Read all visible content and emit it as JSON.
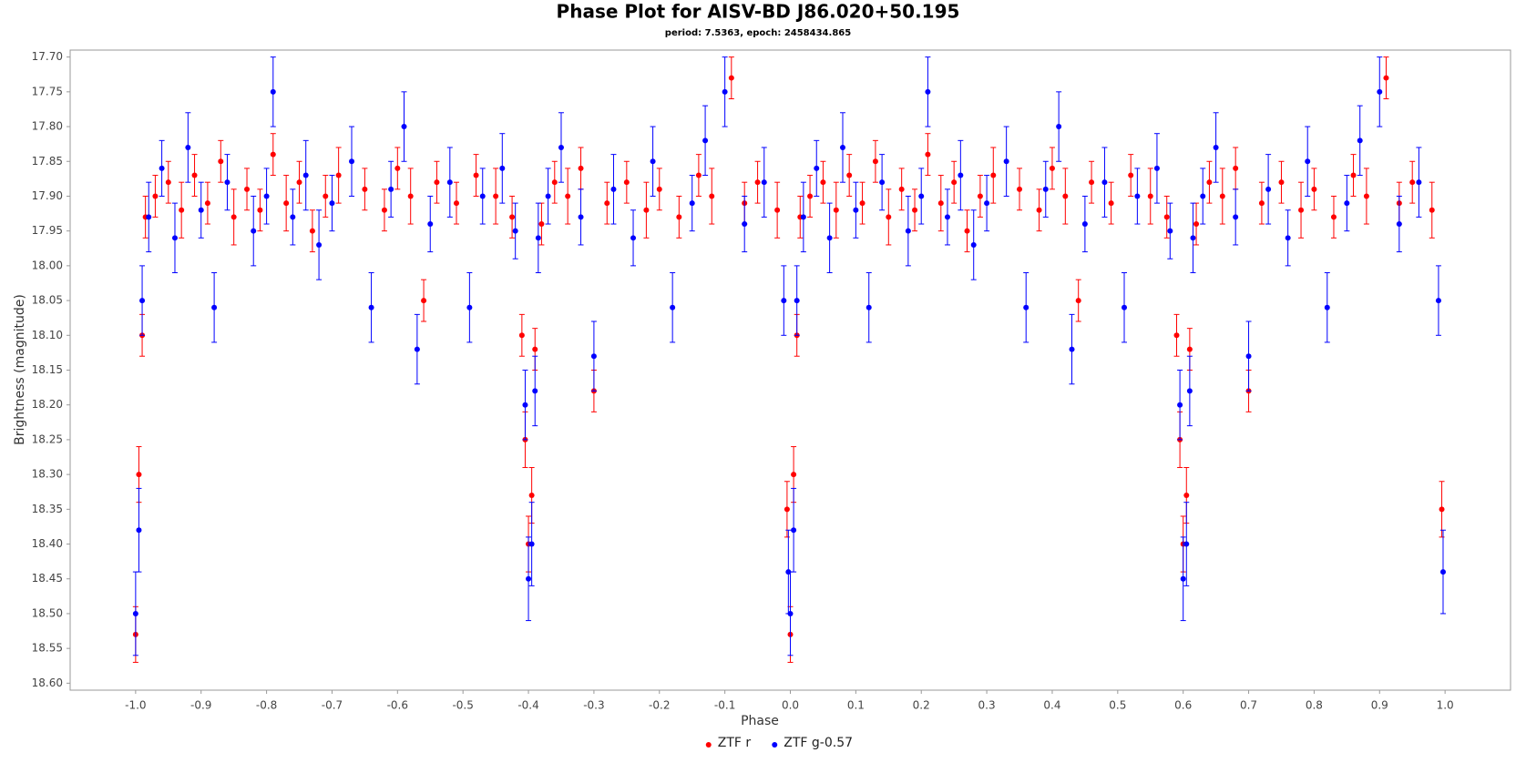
{
  "chart_data": {
    "type": "scatter",
    "title": "Phase Plot for AISV-BD J86.020+50.195",
    "subtitle": "period: 7.5363, epoch: 2458434.865",
    "x_label": "Phase",
    "y_label": "Brightness (magnitude)",
    "xlim": [
      -1.1,
      1.1
    ],
    "ylim": [
      18.61,
      17.69
    ],
    "xticks": [
      {
        "value": -1.0,
        "label": "-1.0"
      },
      -0.9,
      -0.8,
      -0.7,
      -0.6,
      -0.5,
      -0.4,
      -0.3,
      -0.2,
      -0.1,
      {
        "value": 0.0,
        "label": "0.0"
      },
      0.1,
      0.2,
      0.3,
      0.4,
      0.5,
      0.6,
      0.7,
      0.8,
      0.9,
      {
        "value": 1.0,
        "label": "1.0"
      }
    ],
    "yticks": [
      {
        "value": 17.7,
        "label": "17.70"
      },
      17.75,
      {
        "value": 17.8,
        "label": "17.80"
      },
      17.85,
      {
        "value": 17.9,
        "label": "17.90"
      },
      17.95,
      {
        "value": 18.0,
        "label": "18.00"
      },
      18.05,
      {
        "value": 18.1,
        "label": "18.10"
      },
      18.15,
      {
        "value": 18.2,
        "label": "18.20"
      },
      18.25,
      {
        "value": 18.3,
        "label": "18.30"
      },
      18.35,
      {
        "value": 18.4,
        "label": "18.40"
      },
      18.45,
      {
        "value": 18.5,
        "label": "18.50"
      },
      18.55,
      {
        "value": 18.6,
        "label": "18.60"
      }
    ],
    "grid": false,
    "legend": "bottom",
    "series": [
      {
        "name": "ZTF r",
        "color": "#ff0000",
        "x": [
          0.0,
          0.005,
          0.01,
          0.015,
          0.03,
          0.05,
          0.07,
          0.09,
          0.11,
          0.13,
          0.15,
          0.17,
          0.19,
          0.21,
          0.23,
          0.25,
          0.27,
          0.29,
          0.31,
          0.35,
          0.38,
          0.4,
          0.42,
          0.44,
          0.46,
          0.49,
          0.52,
          0.55,
          0.575,
          0.59,
          0.595,
          0.6,
          0.605,
          0.61,
          0.62,
          0.64,
          0.66,
          0.68,
          0.7,
          0.72,
          0.75,
          0.78,
          0.8,
          0.83,
          0.86,
          0.88,
          0.91,
          0.93,
          0.95,
          0.98,
          0.995,
          -1.0,
          -0.995,
          -0.99,
          -0.985,
          -0.97,
          -0.95,
          -0.93,
          -0.91,
          -0.89,
          -0.87,
          -0.85,
          -0.83,
          -0.81,
          -0.79,
          -0.77,
          -0.75,
          -0.73,
          -0.71,
          -0.69,
          -0.65,
          -0.62,
          -0.6,
          -0.58,
          -0.56,
          -0.54,
          -0.51,
          -0.48,
          -0.45,
          -0.425,
          -0.41,
          -0.405,
          -0.4,
          -0.395,
          -0.39,
          -0.38,
          -0.36,
          -0.34,
          -0.32,
          -0.3,
          -0.28,
          -0.25,
          -0.22,
          -0.2,
          -0.17,
          -0.14,
          -0.12,
          -0.09,
          -0.07,
          -0.05,
          -0.02,
          -0.005
        ],
        "values": [
          18.53,
          18.3,
          18.1,
          17.93,
          17.9,
          17.88,
          17.92,
          17.87,
          17.91,
          17.85,
          17.93,
          17.89,
          17.92,
          17.84,
          17.91,
          17.88,
          17.95,
          17.9,
          17.87,
          17.89,
          17.92,
          17.86,
          17.9,
          18.05,
          17.88,
          17.91,
          17.87,
          17.9,
          17.93,
          18.1,
          18.25,
          18.4,
          18.33,
          18.12,
          17.94,
          17.88,
          17.9,
          17.86,
          18.18,
          17.91,
          17.88,
          17.92,
          17.89,
          17.93,
          17.87,
          17.9,
          17.73,
          17.91,
          17.88,
          17.92,
          18.35,
          18.53,
          18.3,
          18.1,
          17.93,
          17.9,
          17.88,
          17.92,
          17.87,
          17.91,
          17.85,
          17.93,
          17.89,
          17.92,
          17.84,
          17.91,
          17.88,
          17.95,
          17.9,
          17.87,
          17.89,
          17.92,
          17.86,
          17.9,
          18.05,
          17.88,
          17.91,
          17.87,
          17.9,
          17.93,
          18.1,
          18.25,
          18.4,
          18.33,
          18.12,
          17.94,
          17.88,
          17.9,
          17.86,
          18.18,
          17.91,
          17.88,
          17.92,
          17.89,
          17.93,
          17.87,
          17.9,
          17.73,
          17.91,
          17.88,
          17.92,
          18.35
        ],
        "errors": [
          0.04,
          0.04,
          0.03,
          0.03,
          0.03,
          0.03,
          0.04,
          0.03,
          0.03,
          0.03,
          0.04,
          0.03,
          0.03,
          0.03,
          0.04,
          0.03,
          0.03,
          0.03,
          0.04,
          0.03,
          0.03,
          0.03,
          0.04,
          0.03,
          0.03,
          0.03,
          0.03,
          0.04,
          0.03,
          0.03,
          0.04,
          0.04,
          0.04,
          0.03,
          0.03,
          0.03,
          0.04,
          0.03,
          0.03,
          0.03,
          0.03,
          0.04,
          0.03,
          0.03,
          0.03,
          0.04,
          0.03,
          0.03,
          0.03,
          0.04,
          0.04,
          0.04,
          0.04,
          0.03,
          0.03,
          0.03,
          0.03,
          0.04,
          0.03,
          0.03,
          0.03,
          0.04,
          0.03,
          0.03,
          0.03,
          0.04,
          0.03,
          0.03,
          0.03,
          0.04,
          0.03,
          0.03,
          0.03,
          0.04,
          0.03,
          0.03,
          0.03,
          0.03,
          0.04,
          0.03,
          0.03,
          0.04,
          0.04,
          0.04,
          0.03,
          0.03,
          0.03,
          0.04,
          0.03,
          0.03,
          0.03,
          0.03,
          0.04,
          0.03,
          0.03,
          0.03,
          0.04,
          0.03,
          0.03,
          0.03,
          0.04,
          0.04
        ]
      },
      {
        "name": "ZTF g-0.57",
        "color": "#0000ff",
        "x": [
          0.0,
          0.005,
          0.01,
          0.02,
          0.04,
          0.06,
          0.08,
          0.1,
          0.12,
          0.14,
          0.18,
          0.2,
          0.21,
          0.24,
          0.26,
          0.28,
          0.3,
          0.33,
          0.36,
          0.39,
          0.41,
          0.43,
          0.45,
          0.48,
          0.51,
          0.53,
          0.56,
          0.58,
          0.595,
          0.6,
          0.605,
          0.61,
          0.615,
          0.63,
          0.65,
          0.68,
          0.7,
          0.73,
          0.76,
          0.79,
          0.82,
          0.85,
          0.87,
          0.9,
          0.93,
          0.96,
          0.99,
          0.997,
          -1.0,
          -0.995,
          -0.99,
          -0.98,
          -0.96,
          -0.94,
          -0.92,
          -0.9,
          -0.88,
          -0.86,
          -0.82,
          -0.8,
          -0.79,
          -0.76,
          -0.74,
          -0.72,
          -0.7,
          -0.67,
          -0.64,
          -0.61,
          -0.59,
          -0.57,
          -0.55,
          -0.52,
          -0.49,
          -0.47,
          -0.44,
          -0.42,
          -0.405,
          -0.4,
          -0.395,
          -0.39,
          -0.385,
          -0.37,
          -0.35,
          -0.32,
          -0.3,
          -0.27,
          -0.24,
          -0.21,
          -0.18,
          -0.15,
          -0.13,
          -0.1,
          -0.07,
          -0.04,
          -0.01,
          -0.003
        ],
        "values": [
          18.5,
          18.38,
          18.05,
          17.93,
          17.86,
          17.96,
          17.83,
          17.92,
          18.06,
          17.88,
          17.95,
          17.9,
          17.75,
          17.93,
          17.87,
          17.97,
          17.91,
          17.85,
          18.06,
          17.89,
          17.8,
          18.12,
          17.94,
          17.88,
          18.06,
          17.9,
          17.86,
          17.95,
          18.2,
          18.45,
          18.4,
          18.18,
          17.96,
          17.9,
          17.83,
          17.93,
          18.13,
          17.89,
          17.96,
          17.85,
          18.06,
          17.91,
          17.82,
          17.75,
          17.94,
          17.88,
          18.05,
          18.44,
          18.5,
          18.38,
          18.05,
          17.93,
          17.86,
          17.96,
          17.83,
          17.92,
          18.06,
          17.88,
          17.95,
          17.9,
          17.75,
          17.93,
          17.87,
          17.97,
          17.91,
          17.85,
          18.06,
          17.89,
          17.8,
          18.12,
          17.94,
          17.88,
          18.06,
          17.9,
          17.86,
          17.95,
          18.2,
          18.45,
          18.4,
          18.18,
          17.96,
          17.9,
          17.83,
          17.93,
          18.13,
          17.89,
          17.96,
          17.85,
          18.06,
          17.91,
          17.82,
          17.75,
          17.94,
          17.88,
          18.05,
          18.44
        ],
        "errors": [
          0.06,
          0.06,
          0.05,
          0.05,
          0.04,
          0.05,
          0.05,
          0.04,
          0.05,
          0.04,
          0.05,
          0.04,
          0.05,
          0.04,
          0.05,
          0.05,
          0.04,
          0.05,
          0.05,
          0.04,
          0.05,
          0.05,
          0.04,
          0.05,
          0.05,
          0.04,
          0.05,
          0.04,
          0.05,
          0.06,
          0.06,
          0.05,
          0.05,
          0.04,
          0.05,
          0.04,
          0.05,
          0.05,
          0.04,
          0.05,
          0.05,
          0.04,
          0.05,
          0.05,
          0.04,
          0.05,
          0.05,
          0.06,
          0.06,
          0.06,
          0.05,
          0.05,
          0.04,
          0.05,
          0.05,
          0.04,
          0.05,
          0.04,
          0.05,
          0.04,
          0.05,
          0.04,
          0.05,
          0.05,
          0.04,
          0.05,
          0.05,
          0.04,
          0.05,
          0.05,
          0.04,
          0.05,
          0.05,
          0.04,
          0.05,
          0.04,
          0.05,
          0.06,
          0.06,
          0.05,
          0.05,
          0.04,
          0.05,
          0.04,
          0.05,
          0.05,
          0.04,
          0.05,
          0.05,
          0.04,
          0.05,
          0.05,
          0.04,
          0.05,
          0.05,
          0.06
        ]
      }
    ]
  }
}
